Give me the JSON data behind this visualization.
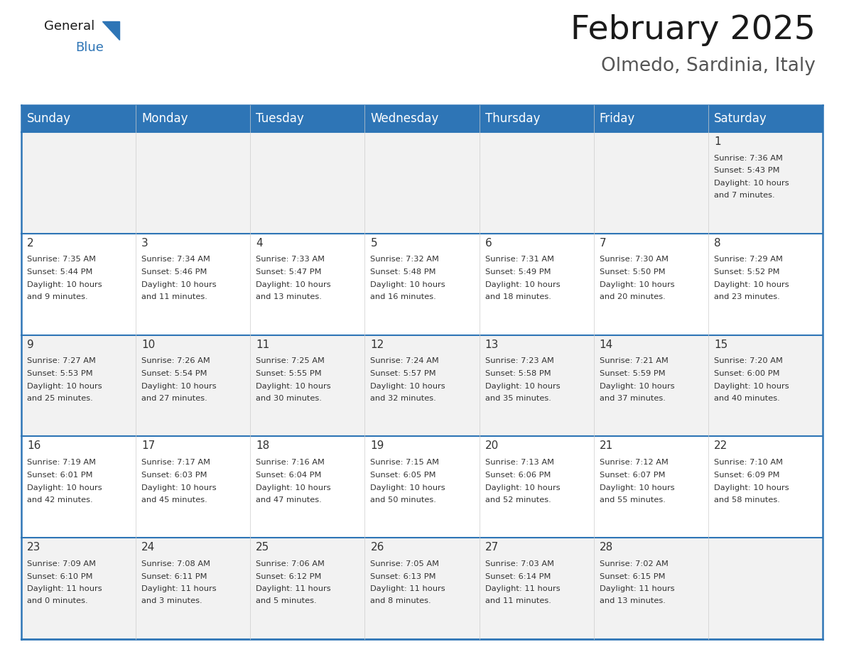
{
  "title": "February 2025",
  "subtitle": "Olmedo, Sardinia, Italy",
  "header_bg": "#2E75B6",
  "header_text_color": "#FFFFFF",
  "cell_bg_even": "#F2F2F2",
  "cell_bg_odd": "#FFFFFF",
  "border_color": "#2E75B6",
  "day_headers": [
    "Sunday",
    "Monday",
    "Tuesday",
    "Wednesday",
    "Thursday",
    "Friday",
    "Saturday"
  ],
  "days": [
    {
      "day": 1,
      "col": 6,
      "row": 0,
      "sunrise": "7:36 AM",
      "sunset": "5:43 PM",
      "daylight_h": "Daylight: 10 hours",
      "daylight_m": "and 7 minutes."
    },
    {
      "day": 2,
      "col": 0,
      "row": 1,
      "sunrise": "7:35 AM",
      "sunset": "5:44 PM",
      "daylight_h": "Daylight: 10 hours",
      "daylight_m": "and 9 minutes."
    },
    {
      "day": 3,
      "col": 1,
      "row": 1,
      "sunrise": "7:34 AM",
      "sunset": "5:46 PM",
      "daylight_h": "Daylight: 10 hours",
      "daylight_m": "and 11 minutes."
    },
    {
      "day": 4,
      "col": 2,
      "row": 1,
      "sunrise": "7:33 AM",
      "sunset": "5:47 PM",
      "daylight_h": "Daylight: 10 hours",
      "daylight_m": "and 13 minutes."
    },
    {
      "day": 5,
      "col": 3,
      "row": 1,
      "sunrise": "7:32 AM",
      "sunset": "5:48 PM",
      "daylight_h": "Daylight: 10 hours",
      "daylight_m": "and 16 minutes."
    },
    {
      "day": 6,
      "col": 4,
      "row": 1,
      "sunrise": "7:31 AM",
      "sunset": "5:49 PM",
      "daylight_h": "Daylight: 10 hours",
      "daylight_m": "and 18 minutes."
    },
    {
      "day": 7,
      "col": 5,
      "row": 1,
      "sunrise": "7:30 AM",
      "sunset": "5:50 PM",
      "daylight_h": "Daylight: 10 hours",
      "daylight_m": "and 20 minutes."
    },
    {
      "day": 8,
      "col": 6,
      "row": 1,
      "sunrise": "7:29 AM",
      "sunset": "5:52 PM",
      "daylight_h": "Daylight: 10 hours",
      "daylight_m": "and 23 minutes."
    },
    {
      "day": 9,
      "col": 0,
      "row": 2,
      "sunrise": "7:27 AM",
      "sunset": "5:53 PM",
      "daylight_h": "Daylight: 10 hours",
      "daylight_m": "and 25 minutes."
    },
    {
      "day": 10,
      "col": 1,
      "row": 2,
      "sunrise": "7:26 AM",
      "sunset": "5:54 PM",
      "daylight_h": "Daylight: 10 hours",
      "daylight_m": "and 27 minutes."
    },
    {
      "day": 11,
      "col": 2,
      "row": 2,
      "sunrise": "7:25 AM",
      "sunset": "5:55 PM",
      "daylight_h": "Daylight: 10 hours",
      "daylight_m": "and 30 minutes."
    },
    {
      "day": 12,
      "col": 3,
      "row": 2,
      "sunrise": "7:24 AM",
      "sunset": "5:57 PM",
      "daylight_h": "Daylight: 10 hours",
      "daylight_m": "and 32 minutes."
    },
    {
      "day": 13,
      "col": 4,
      "row": 2,
      "sunrise": "7:23 AM",
      "sunset": "5:58 PM",
      "daylight_h": "Daylight: 10 hours",
      "daylight_m": "and 35 minutes."
    },
    {
      "day": 14,
      "col": 5,
      "row": 2,
      "sunrise": "7:21 AM",
      "sunset": "5:59 PM",
      "daylight_h": "Daylight: 10 hours",
      "daylight_m": "and 37 minutes."
    },
    {
      "day": 15,
      "col": 6,
      "row": 2,
      "sunrise": "7:20 AM",
      "sunset": "6:00 PM",
      "daylight_h": "Daylight: 10 hours",
      "daylight_m": "and 40 minutes."
    },
    {
      "day": 16,
      "col": 0,
      "row": 3,
      "sunrise": "7:19 AM",
      "sunset": "6:01 PM",
      "daylight_h": "Daylight: 10 hours",
      "daylight_m": "and 42 minutes."
    },
    {
      "day": 17,
      "col": 1,
      "row": 3,
      "sunrise": "7:17 AM",
      "sunset": "6:03 PM",
      "daylight_h": "Daylight: 10 hours",
      "daylight_m": "and 45 minutes."
    },
    {
      "day": 18,
      "col": 2,
      "row": 3,
      "sunrise": "7:16 AM",
      "sunset": "6:04 PM",
      "daylight_h": "Daylight: 10 hours",
      "daylight_m": "and 47 minutes."
    },
    {
      "day": 19,
      "col": 3,
      "row": 3,
      "sunrise": "7:15 AM",
      "sunset": "6:05 PM",
      "daylight_h": "Daylight: 10 hours",
      "daylight_m": "and 50 minutes."
    },
    {
      "day": 20,
      "col": 4,
      "row": 3,
      "sunrise": "7:13 AM",
      "sunset": "6:06 PM",
      "daylight_h": "Daylight: 10 hours",
      "daylight_m": "and 52 minutes."
    },
    {
      "day": 21,
      "col": 5,
      "row": 3,
      "sunrise": "7:12 AM",
      "sunset": "6:07 PM",
      "daylight_h": "Daylight: 10 hours",
      "daylight_m": "and 55 minutes."
    },
    {
      "day": 22,
      "col": 6,
      "row": 3,
      "sunrise": "7:10 AM",
      "sunset": "6:09 PM",
      "daylight_h": "Daylight: 10 hours",
      "daylight_m": "and 58 minutes."
    },
    {
      "day": 23,
      "col": 0,
      "row": 4,
      "sunrise": "7:09 AM",
      "sunset": "6:10 PM",
      "daylight_h": "Daylight: 11 hours",
      "daylight_m": "and 0 minutes."
    },
    {
      "day": 24,
      "col": 1,
      "row": 4,
      "sunrise": "7:08 AM",
      "sunset": "6:11 PM",
      "daylight_h": "Daylight: 11 hours",
      "daylight_m": "and 3 minutes."
    },
    {
      "day": 25,
      "col": 2,
      "row": 4,
      "sunrise": "7:06 AM",
      "sunset": "6:12 PM",
      "daylight_h": "Daylight: 11 hours",
      "daylight_m": "and 5 minutes."
    },
    {
      "day": 26,
      "col": 3,
      "row": 4,
      "sunrise": "7:05 AM",
      "sunset": "6:13 PM",
      "daylight_h": "Daylight: 11 hours",
      "daylight_m": "and 8 minutes."
    },
    {
      "day": 27,
      "col": 4,
      "row": 4,
      "sunrise": "7:03 AM",
      "sunset": "6:14 PM",
      "daylight_h": "Daylight: 11 hours",
      "daylight_m": "and 11 minutes."
    },
    {
      "day": 28,
      "col": 5,
      "row": 4,
      "sunrise": "7:02 AM",
      "sunset": "6:15 PM",
      "daylight_h": "Daylight: 11 hours",
      "daylight_m": "and 13 minutes."
    }
  ],
  "num_rows": 5,
  "num_cols": 7,
  "fig_width": 11.88,
  "fig_height": 9.18,
  "title_fontsize": 34,
  "subtitle_fontsize": 19,
  "header_fontsize": 12,
  "day_num_fontsize": 11,
  "cell_text_fontsize": 8.2,
  "logo_general_fontsize": 13,
  "logo_blue_fontsize": 13
}
